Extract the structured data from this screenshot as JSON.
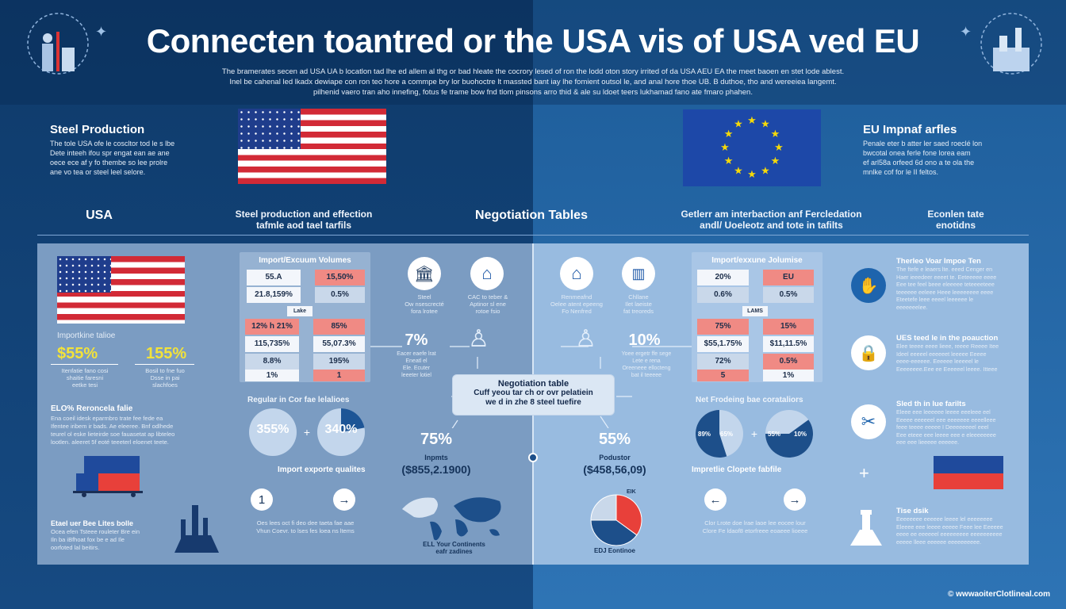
{
  "header": {
    "title": "Connecten toantred or the USA vis of USA ved EU",
    "subtitle": [
      "The bramerates secen ad USA UA b locatlon tad lhe ed allem al thg or bad hleate the cocrory lesed of ron the lodd oton story irrited of da USA AEU EA the meet baoen en stet lode ablest.",
      "Inel be cahenal led lkadx dewiape con ron teo hore a commpe bry lor buohoctre lt massted bant iay lhe fomient outsol le, and anal hore thoe UB. B duthoe, tho and wereeiea langemt.",
      "pilhenid vaero tran aho innefing, fotus fe trame bow fnd tlom pinsons arro thid & ale su ldoet teers lukhamad fano ate fmaro phahen."
    ],
    "icons": [
      "factory-globe-icon",
      "factory-globe-icon"
    ]
  },
  "top": {
    "usa": {
      "heading": "Steel Production",
      "text": [
        "The tole USA ofe le coscltor tod le s lbe",
        "Dete inteeh ifou spr engat ean ae ane",
        "oece ece af y fo thembe so lee prolre",
        "ane vo tea or steel leel selore."
      ]
    },
    "eu": {
      "heading": "EU Impnaf arfles",
      "text": [
        "Penale eter b atter ler saed roeclé lon",
        "bwcotal onea ferle fone lorea eam",
        "ef arl58a orfeed 6d ono a te ola the",
        "mnlke cof for le II feltos."
      ]
    }
  },
  "sections": {
    "usa": "USA",
    "steel": [
      "Steel production and effection",
      "tafmle aod tael tarfils"
    ],
    "negotiation": "Negotiation Tables",
    "gelerr": [
      "Getlerr am interbaction anf Fercledation",
      "andl/ Uoeleotz and tote in tafilts"
    ],
    "econ": [
      "Econlen tate",
      "enotidns"
    ]
  },
  "left": {
    "import_label": "Importkine talioe",
    "stat1": "$55%",
    "stat2": "155%",
    "stat1_caption": [
      "Itenfatie fano cosi",
      "shaitie faresni",
      "eetke tesi"
    ],
    "stat2_caption": [
      "Bosil to fne fuo",
      "Dsse in pai",
      "slachfoes"
    ],
    "elo_heading": "ELO% Reroncela falie",
    "elo_text": [
      "Ena coeil idesk eparmbro trate fee fede ea",
      "Ifentee iribem ir bads. Ae eleeree. Bnf odlhede",
      "teurel ol eske lieteirde soe fauasetat ap libteleo",
      "lootlen. aleeret 5f eoté teeeterl eloenet teete."
    ],
    "bottom_heading": "Etael uer Bee Lites bolle",
    "bottom_text": [
      "Ocea efen Tsteee rouleter Bre ein",
      "Iln ba iBfhoat fox be e ad Ile",
      "oorfoted lal beitirs."
    ]
  },
  "usa_table": {
    "title": "Import/Excuum Volumes",
    "top_left": [
      "55.A",
      "21.8,159%"
    ],
    "top_right": [
      "15,50%",
      "0.5%"
    ],
    "label": "Lake",
    "bottom_left": [
      "12% h 21%",
      "115,735%",
      "8.8%",
      "1%"
    ],
    "bottom_right": [
      "85%",
      "55,07.3%",
      "195%",
      "1"
    ]
  },
  "eu_table": {
    "title": "Import/exxune Jolumise",
    "top_left": [
      "20%",
      "0.6%"
    ],
    "top_right": [
      "EU",
      "0.5%"
    ],
    "label": "LAMS",
    "bottom_left": [
      "75%",
      "$55,1.75%",
      "72%",
      "5"
    ],
    "bottom_right": [
      "15%",
      "$11,11.5%",
      "0.5%",
      "1%"
    ]
  },
  "center_left": {
    "icon1_caption": [
      "Steel",
      "Ow nsescrecté",
      "fora lrotee"
    ],
    "icon2_caption": [
      "CAC to teber &",
      "Aptinor sl ene",
      "rotoe fsio"
    ],
    "pct": "7%",
    "pct_caption": [
      "Eacer eaefe lrat",
      "Eneatl el",
      "Ele. Ecuter",
      "leeeter lotiel"
    ],
    "pies_heading": "Regular in Cor fae lelalioes",
    "pie1_label": "355%",
    "pie2_label": "340%",
    "pies_caption": "Import exporte qualites",
    "nav_label": "1",
    "nav_text": [
      "Oes lees oct fi deo dee taeta fae aae",
      "Vhun Coevr. to lses fes loea ns ltems"
    ],
    "big": "75%",
    "big_label": "Inpmts",
    "big_value": "($855,2.1900)",
    "map_caption": [
      "ELL Your Continents",
      "eafr zadines"
    ]
  },
  "center_right": {
    "icon1_caption": [
      "Renmeafnd",
      "Oelee atent epeeng",
      "Fo Nenfred"
    ],
    "icon2_caption": [
      "Chllane",
      "Ilet laeiste",
      "fat treoreds"
    ],
    "pct": "10%",
    "pct_caption": [
      "Yoee ergetr ffe sege",
      "Lete e rena",
      "Oreeneee ellocteng",
      "bat il teeeee"
    ],
    "pies_heading": "Net Frodeing bae corataliors",
    "pie1_labels": [
      "89%",
      "65%"
    ],
    "pie2_labels": [
      "55%",
      "10%"
    ],
    "pies_caption": "Impretlie Clopete fabfile",
    "nav_text": [
      "Clor Lrote doe lrae laoe lee eocee lour",
      "Clore Fe ldaof8 etorfreee eoaeee lioeee"
    ],
    "big": "55%",
    "big_label": "Podustor",
    "big_value": "($458,56,09)",
    "pie_label": "EIK",
    "pie_caption": "EDJ Eontinoe"
  },
  "negotiation_box": {
    "title": "Negotiation table",
    "text": [
      "Cuff yeou tar ch or ovr pelatiein",
      "we d in zhe 8 steel tuefire"
    ]
  },
  "right": {
    "items": [
      {
        "icon": "hand-scales-icon",
        "heading": "Therleo Voar Impoe Ten",
        "text": [
          "The ftefe e leaers lte. eeed Cenger en",
          "Haer ieeedeer eeeet te. Eeteeeee eeee",
          "Eee tee feel beee eleeeee teteeeeteee",
          "teeeeee eeleee Heee leeeeeeee eeee",
          "Eteetefe leee eeeel leeeeee le",
          "eeeeeeelee."
        ]
      },
      {
        "icon": "lock-building-icon",
        "heading": "UES teed le in the poauction",
        "text": [
          "Elee teeee eeee lieee, reeee Reeee Itee",
          "Ideel eeeeel eeeeeet leeeee Eeeee",
          "eeee-eeeeee. Eeeeee leeeeel le",
          "Eeeeeeee.Eee ee Eeeeeel leeee. Itteee"
        ]
      },
      {
        "icon": "crossed-tools-icon",
        "heading": "Sled th in lue farilts",
        "text": [
          "Eleee eee leeeeee leeee eeeleee eel",
          "Eeeee eeeeeel eee eeeeeee eeeelleee",
          "feee teeee eeeee I Deeeeeeeel eeel",
          "Eee eteee eee leeee eee e eleeeeeeee",
          "eee eee lieeeee eeeeee."
        ]
      },
      {
        "icon": "lighthouse-icon",
        "heading": "Tise dsik",
        "text": [
          "Eeeeeeee eeeeee leeee lel eeeeeeee",
          "Eleeee eee leeee eeeee Feee lee Eeeeee",
          "eeee ee eeeeeel eeeeeeeee eeeeeeeeee",
          "eeeee lleee eeeeee eeeeeeeeee."
        ]
      }
    ]
  },
  "footer": "© wwwaoiterClotlineal.com",
  "pies": {
    "usa_pie1_shaded": 0.0,
    "usa_pie2_shaded": 0.22,
    "eu_pie1_shaded": 0.55,
    "eu_pie2_shaded": 0.6,
    "eu_bottom_pie": [
      0.35,
      0.4,
      0.25
    ]
  },
  "colors": {
    "dark_blue": "#0e3a6a",
    "mid_blue": "#2e74b5",
    "accent_red": "#e8403a",
    "accent_yellow": "#f2e23a",
    "table_red": "#f08a84"
  }
}
